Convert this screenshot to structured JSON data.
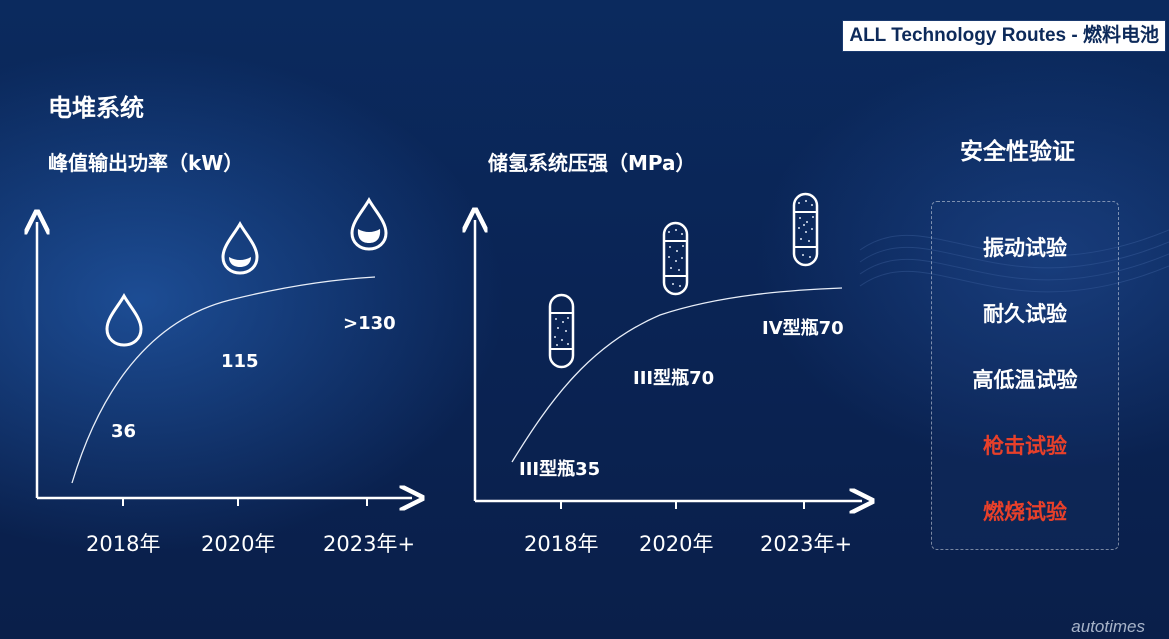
{
  "header": {
    "title": "ALL Technology Routes - 燃料电池"
  },
  "section_title": "电堆系统",
  "left_panel": {
    "subtitle": "峰值输出功率（kW）",
    "values": [
      "36",
      "115",
      ">130"
    ],
    "x_ticks": [
      "2018年",
      "2020年",
      "2023年+"
    ],
    "icons": [
      "water-drop-empty-icon",
      "water-drop-half-icon",
      "water-drop-full-icon"
    ]
  },
  "middle_panel": {
    "subtitle": "储氢系统压强（MPa）",
    "values": [
      "III型瓶35",
      "III型瓶70",
      "IV型瓶70"
    ],
    "x_ticks": [
      "2018年",
      "2020年",
      "2023年+"
    ],
    "icons": [
      "hydrogen-tank-small-icon",
      "hydrogen-tank-medium-icon",
      "hydrogen-tank-large-icon"
    ]
  },
  "right_panel": {
    "title": "安全性验证",
    "items": [
      {
        "label": "振动试验",
        "color": "#ffffff"
      },
      {
        "label": "耐久试验",
        "color": "#ffffff"
      },
      {
        "label": "高低温试验",
        "color": "#ffffff"
      },
      {
        "label": "枪击试验",
        "color": "#e8402a"
      },
      {
        "label": "燃烧试验",
        "color": "#e8402a"
      }
    ]
  },
  "watermark": "autotimes"
}
